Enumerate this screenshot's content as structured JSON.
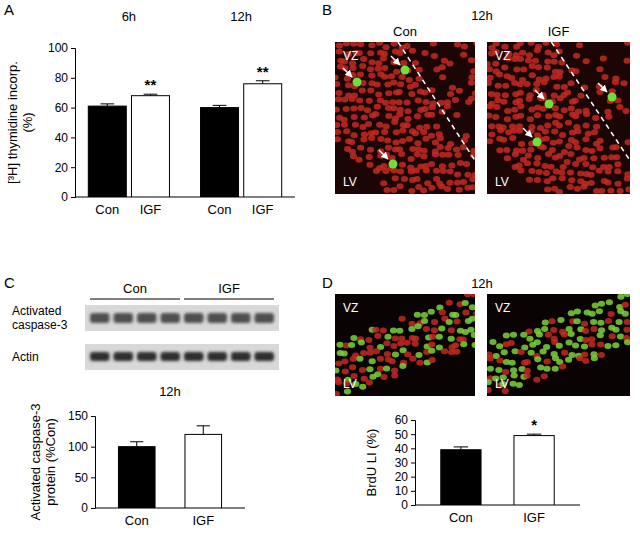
{
  "chart_data": [
    {
      "type": "bar",
      "group_labels": [
        "6h",
        "12h"
      ],
      "categories": [
        "Con",
        "IGF",
        "Con",
        "IGF"
      ],
      "values": [
        61,
        68,
        60,
        76
      ],
      "errors": [
        1.5,
        1,
        1.5,
        2
      ],
      "colors": [
        "#000000",
        "#ffffff",
        "#000000",
        "#ffffff"
      ],
      "annotations": [
        null,
        "**",
        null,
        "**"
      ],
      "y_label": [
        "[³H] thymidine incorp.",
        "(%)"
      ],
      "ylim": [
        0,
        100
      ],
      "yticks": [
        0,
        20,
        40,
        60,
        80,
        100
      ]
    },
    {
      "type": "bar",
      "title": "12h",
      "categories": [
        "Con",
        "IGF"
      ],
      "values": [
        100,
        120
      ],
      "errors": [
        8,
        14
      ],
      "colors": [
        "#000000",
        "#ffffff"
      ],
      "y_label": [
        "Activated caspase-3",
        "protein (%Con)"
      ],
      "ylim": [
        0,
        150
      ],
      "yticks": [
        0,
        50,
        100,
        150
      ]
    },
    {
      "type": "bar",
      "categories": [
        "Con",
        "IGF"
      ],
      "values": [
        39,
        49
      ],
      "errors": [
        2,
        1
      ],
      "colors": [
        "#000000",
        "#ffffff"
      ],
      "annotations": [
        null,
        "*"
      ],
      "y_label": [
        "BrdU LI (%)"
      ],
      "ylim": [
        0,
        60
      ],
      "yticks": [
        0,
        10,
        20,
        30,
        40,
        50,
        60
      ]
    }
  ],
  "figure": {
    "panel_letters": [
      "A",
      "B",
      "C",
      "D"
    ],
    "micrographs": [
      {
        "title": "12h",
        "images": [
          {
            "label": "Con",
            "regions": [
              "VZ",
              "LV"
            ]
          },
          {
            "label": "IGF",
            "regions": [
              "VZ",
              "LV"
            ]
          }
        ]
      },
      {
        "title": "12h",
        "images": [
          {
            "regions": [
              "VZ",
              "LV"
            ]
          },
          {
            "regions": [
              "VZ",
              "LV"
            ]
          }
        ]
      }
    ],
    "blot": {
      "lane_groups": [
        "Con",
        "IGF"
      ],
      "rows": [
        [
          "Activated",
          "caspase-3"
        ],
        [
          "Actin"
        ]
      ]
    }
  }
}
